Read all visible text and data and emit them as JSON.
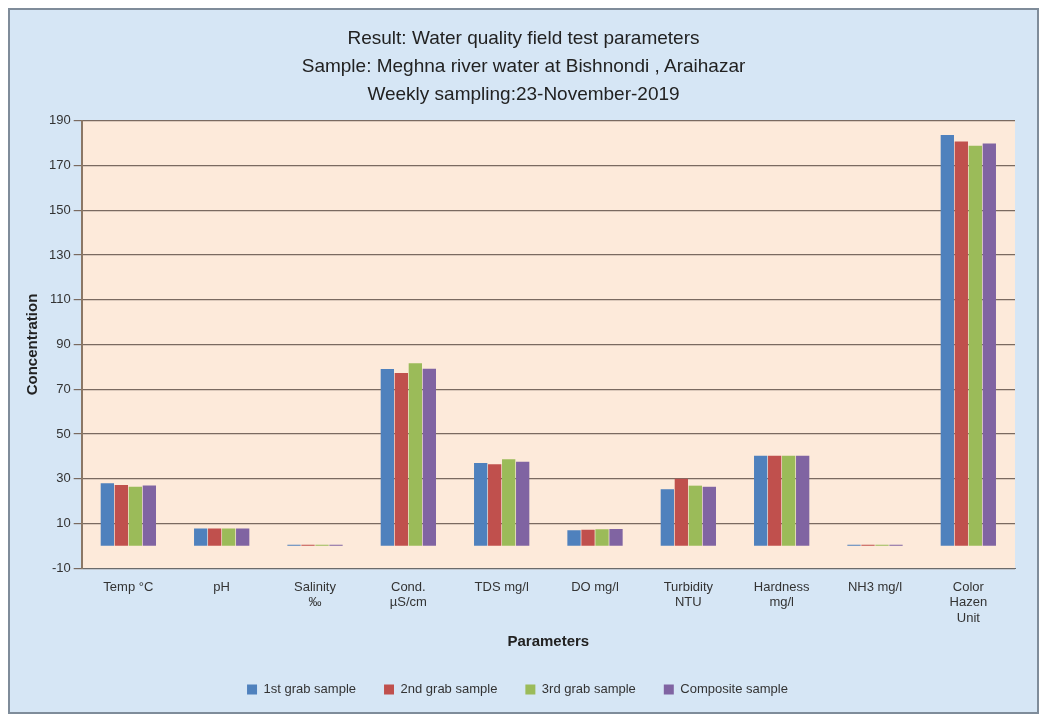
{
  "chart_data": {
    "type": "bar",
    "title": "Result: Water quality field test parameters",
    "subtitle": "Sample: Meghna river water at Bishnondi , Araihazar\nWeekly sampling:23-November-2019",
    "xlabel": "Parameters",
    "ylabel": "Concentration",
    "categories": [
      "Temp °C",
      "pH",
      "Salinity\n‰",
      "Cond.\nµS/cm",
      "TDS mg/l",
      "DO mg/l",
      "Turbidity\nNTU",
      "Hardness\nmg/l",
      "NH3 mg/l",
      "Color\nHazen\nUnit"
    ],
    "series": [
      {
        "name": "1st grab sample",
        "color": "#4f81bd",
        "values": [
          28,
          7.7,
          0.5,
          79,
          37,
          7,
          25.3,
          40.3,
          0.5,
          183.7
        ]
      },
      {
        "name": "2nd grab sample",
        "color": "#c0504d",
        "values": [
          27.2,
          7.7,
          0.5,
          77.3,
          36.5,
          7.2,
          30,
          40.3,
          0.5,
          180.8
        ]
      },
      {
        "name": "3rd grab sample",
        "color": "#9bbb59",
        "values": [
          26.4,
          7.7,
          0.5,
          81.6,
          38.7,
          7.4,
          26.9,
          40.3,
          0.5,
          178.9
        ]
      },
      {
        "name": "Composite sample",
        "color": "#8064a2",
        "values": [
          27,
          7.7,
          0.5,
          79.2,
          37.6,
          7.5,
          26.4,
          40.3,
          0.5,
          179.8
        ]
      }
    ],
    "ylim": [
      -10,
      190
    ],
    "yticks": [
      -10,
      10,
      30,
      50,
      70,
      90,
      110,
      130,
      150,
      170,
      190
    ],
    "grid": "y",
    "legend": "bottom"
  }
}
